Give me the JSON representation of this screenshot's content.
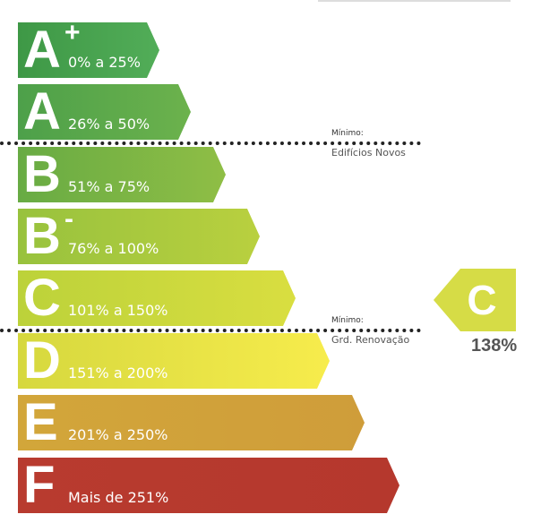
{
  "classes": [
    {
      "letter": "A",
      "sup": "+",
      "range": "0% a 25%",
      "c1": "#3e9846",
      "c2": "#52ad58"
    },
    {
      "letter": "A",
      "sup": "",
      "range": "26% a 50%",
      "c1": "#4da04a",
      "c2": "#6cb24c"
    },
    {
      "letter": "B",
      "sup": "",
      "range": "51% a 75%",
      "c1": "#68ab44",
      "c2": "#8fbe45"
    },
    {
      "letter": "B",
      "sup": "-",
      "range": "76% a 100%",
      "c1": "#98c23d",
      "c2": "#b9d03f"
    },
    {
      "letter": "C",
      "sup": "",
      "range": "101% a 150%",
      "c1": "#bcd23a",
      "c2": "#d9de40"
    },
    {
      "letter": "D",
      "sup": "",
      "range": "151% a 200%",
      "c1": "#d6d83e",
      "c2": "#f7ec4c"
    },
    {
      "letter": "E",
      "sup": "",
      "range": "201% a 250%",
      "c1": "#d2a63a",
      "c2": "#cf9d3a"
    },
    {
      "letter": "F",
      "sup": "",
      "range": "Mais de 251%",
      "c1": "#b83b2f",
      "c2": "#b5382d"
    }
  ],
  "thresholds": {
    "new": {
      "label": "Mínimo:",
      "sub": "Edifícios Novos"
    },
    "renovation": {
      "label": "Mínimo:",
      "sub": "Grd. Renovação"
    }
  },
  "result": {
    "class": "C",
    "value": "138%",
    "color": "#d6dc46"
  }
}
